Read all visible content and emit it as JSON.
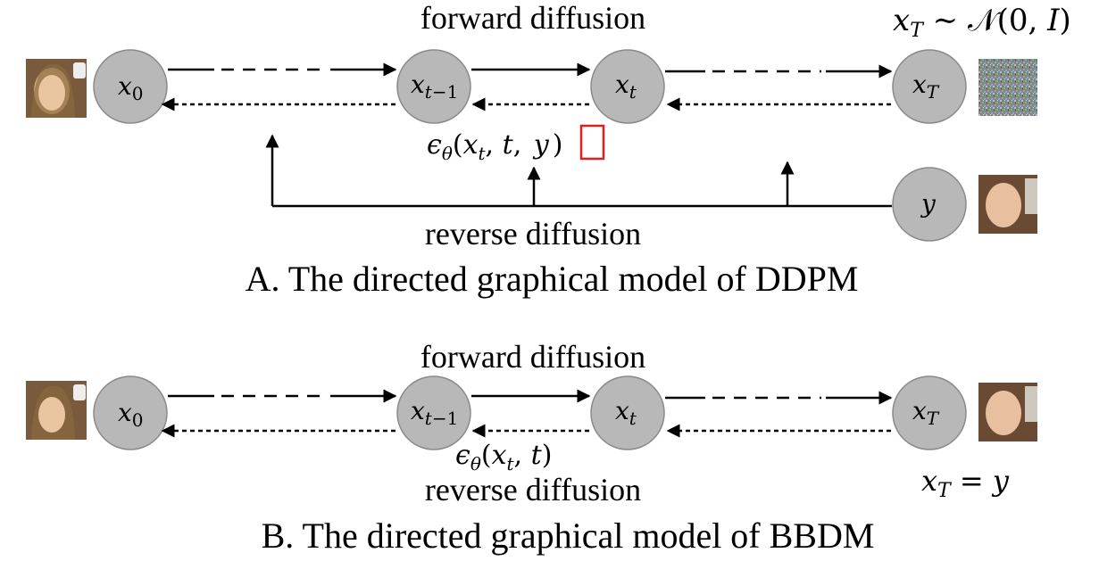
{
  "panel_a": {
    "forward_label": "forward diffusion",
    "reverse_label": "reverse diffusion",
    "caption": "A. The directed graphical model of DDPM",
    "prior": "x_T ~ N(0, I)",
    "noise_model": "εθ(xt, t, y)",
    "nodes": {
      "x0": "x0",
      "xt1": "xt−1",
      "xt": "xt",
      "xT": "xT",
      "y": "y"
    }
  },
  "panel_b": {
    "forward_label": "forward diffusion",
    "reverse_label": "reverse diffusion",
    "caption": "B. The directed graphical model of BBDM",
    "endpoint_eq": "x_T = y",
    "noise_model": "εθ(xt, t)",
    "nodes": {
      "x0": "x0",
      "xt1": "xt−1",
      "xt": "xt",
      "xT": "xT"
    }
  },
  "colors": {
    "node_fill": "#b8b8b8",
    "highlight_box": "#e02020"
  }
}
